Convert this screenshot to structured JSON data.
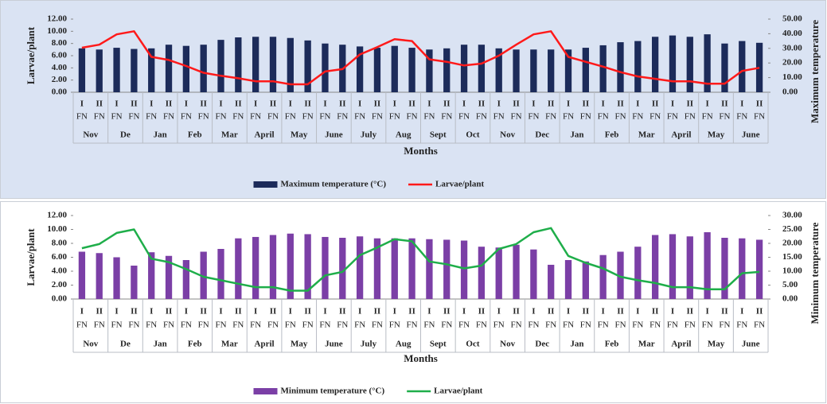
{
  "chart_data": [
    {
      "type": "bar",
      "background": "#dae3f3",
      "legend": "bottom",
      "x_label": "Months",
      "y_label": "Larvae/plant",
      "y2_label": "Maximum temperature",
      "categories": [
        "I",
        "II",
        "I",
        "II",
        "I",
        "II",
        "I",
        "II",
        "I",
        "II",
        "I",
        "II",
        "I",
        "II",
        "I",
        "II",
        "I",
        "II",
        "I",
        "II",
        "I",
        "II",
        "I",
        "II",
        "I",
        "II",
        "I",
        "II",
        "I",
        "II",
        "I",
        "II",
        "I",
        "II",
        "I",
        "II",
        "I",
        "II",
        "I",
        "II"
      ],
      "x_sublabel": "FN",
      "month_groups": [
        "Nov",
        "De",
        "Jan",
        "Feb",
        "Mar",
        "April",
        "May",
        "June",
        "July",
        "Aug",
        "Sept",
        "Oct",
        "Nov",
        "Dec",
        "Jan",
        "Feb",
        "Mar",
        "April",
        "May",
        "June"
      ],
      "ylim": [
        0,
        12
      ],
      "yticks": [
        {
          "value": 0,
          "label": "0.00"
        },
        {
          "value": 2,
          "label": "2.00"
        },
        {
          "value": 4,
          "label": "4.00"
        },
        {
          "value": 6,
          "label": "6.00"
        },
        {
          "value": 8,
          "label": "8.00"
        },
        {
          "value": 10,
          "label": "10.00"
        },
        {
          "value": 12,
          "label": "12.00"
        }
      ],
      "y2lim": [
        0,
        50
      ],
      "y2ticks": [
        {
          "value": 0,
          "label": "0.00"
        },
        {
          "value": 10,
          "label": "10.00"
        },
        {
          "value": 20,
          "label": "20.00"
        },
        {
          "value": 30,
          "label": "30.00"
        },
        {
          "value": 40,
          "label": "40.00"
        },
        {
          "value": 50,
          "label": "50.00"
        }
      ],
      "series": [
        {
          "name": "Maximum temperature (°C)",
          "type": "bar",
          "axis": "y2",
          "color": "#1c2b5a",
          "values": [
            30.0,
            29.2,
            30.4,
            29.6,
            30.0,
            32.5,
            31.7,
            32.5,
            35.8,
            37.5,
            37.9,
            37.9,
            37.1,
            35.4,
            33.3,
            32.5,
            31.3,
            30.4,
            31.7,
            30.4,
            29.2,
            30.0,
            32.5,
            32.5,
            30.0,
            29.2,
            29.2,
            29.2,
            29.2,
            30.4,
            32.1,
            34.2,
            35.0,
            37.9,
            38.8,
            37.9,
            39.6,
            33.3,
            35.0,
            33.8
          ]
        },
        {
          "name": "Larvae/plant",
          "type": "line",
          "axis": "y",
          "color": "#ff1a1a",
          "values": [
            7.3,
            7.8,
            9.5,
            10.0,
            5.8,
            5.3,
            4.3,
            3.2,
            2.7,
            2.3,
            1.8,
            1.8,
            1.3,
            1.3,
            3.4,
            3.8,
            6.2,
            7.4,
            8.7,
            8.4,
            5.4,
            5.0,
            4.4,
            4.7,
            6.0,
            7.8,
            9.5,
            10.0,
            5.8,
            5.0,
            4.2,
            3.3,
            2.6,
            2.2,
            1.8,
            1.8,
            1.4,
            1.4,
            3.5,
            4.0
          ]
        }
      ]
    },
    {
      "type": "bar",
      "background": "#ffffff",
      "legend": "bottom",
      "x_label": "Months",
      "y_label": "Larvae/plant",
      "y2_label": "Minimum temperature",
      "categories": [
        "I",
        "II",
        "I",
        "II",
        "I",
        "II",
        "I",
        "II",
        "I",
        "II",
        "I",
        "II",
        "I",
        "II",
        "I",
        "II",
        "I",
        "II",
        "I",
        "II",
        "I",
        "II",
        "I",
        "II",
        "I",
        "II",
        "I",
        "II",
        "I",
        "II",
        "I",
        "II",
        "I",
        "II",
        "I",
        "II",
        "I",
        "II",
        "I",
        "II"
      ],
      "x_sublabel": "FN",
      "month_groups": [
        "Nov",
        "De",
        "Jan",
        "Feb",
        "Mar",
        "April",
        "May",
        "June",
        "July",
        "Aug",
        "Sept",
        "Oct",
        "Nov",
        "Dec",
        "Jan",
        "Feb",
        "Mar",
        "April",
        "May",
        "June"
      ],
      "ylim": [
        0,
        12
      ],
      "yticks": [
        {
          "value": 0,
          "label": "0.00"
        },
        {
          "value": 2,
          "label": "2.00"
        },
        {
          "value": 4,
          "label": "4.00"
        },
        {
          "value": 6,
          "label": "6.00"
        },
        {
          "value": 8,
          "label": "8.00"
        },
        {
          "value": 10,
          "label": "10.00"
        },
        {
          "value": 12,
          "label": "12.00"
        }
      ],
      "y2lim": [
        0,
        30
      ],
      "y2ticks": [
        {
          "value": 0,
          "label": "0.00"
        },
        {
          "value": 5,
          "label": "5.00"
        },
        {
          "value": 10,
          "label": "10.00"
        },
        {
          "value": 15,
          "label": "15.00"
        },
        {
          "value": 20,
          "label": "20.00"
        },
        {
          "value": 25,
          "label": "25.00"
        },
        {
          "value": 30,
          "label": "30.00"
        }
      ],
      "series": [
        {
          "name": "Minimum temperature (°C)",
          "type": "bar",
          "axis": "y2",
          "color": "#7b3fa6",
          "values": [
            17.0,
            16.5,
            15.0,
            12.0,
            16.8,
            15.5,
            14.0,
            17.0,
            18.0,
            21.8,
            22.3,
            23.0,
            23.5,
            23.3,
            22.3,
            22.0,
            22.5,
            21.8,
            21.8,
            21.8,
            21.5,
            21.3,
            21.0,
            18.8,
            18.5,
            19.5,
            17.8,
            12.3,
            14.0,
            13.5,
            15.8,
            17.0,
            18.8,
            23.0,
            23.3,
            22.5,
            24.0,
            22.0,
            21.8,
            21.3
          ]
        },
        {
          "name": "Larvae/plant",
          "type": "line",
          "axis": "y",
          "color": "#1fae4a",
          "values": [
            7.3,
            7.9,
            9.5,
            10.0,
            5.8,
            5.3,
            4.3,
            3.2,
            2.7,
            2.2,
            1.7,
            1.7,
            1.2,
            1.2,
            3.4,
            3.9,
            6.3,
            7.4,
            8.6,
            8.3,
            5.4,
            5.0,
            4.4,
            4.8,
            7.2,
            7.9,
            9.6,
            10.2,
            6.2,
            5.2,
            4.4,
            3.2,
            2.7,
            2.3,
            1.7,
            1.7,
            1.4,
            1.4,
            3.7,
            3.9
          ]
        }
      ]
    }
  ]
}
